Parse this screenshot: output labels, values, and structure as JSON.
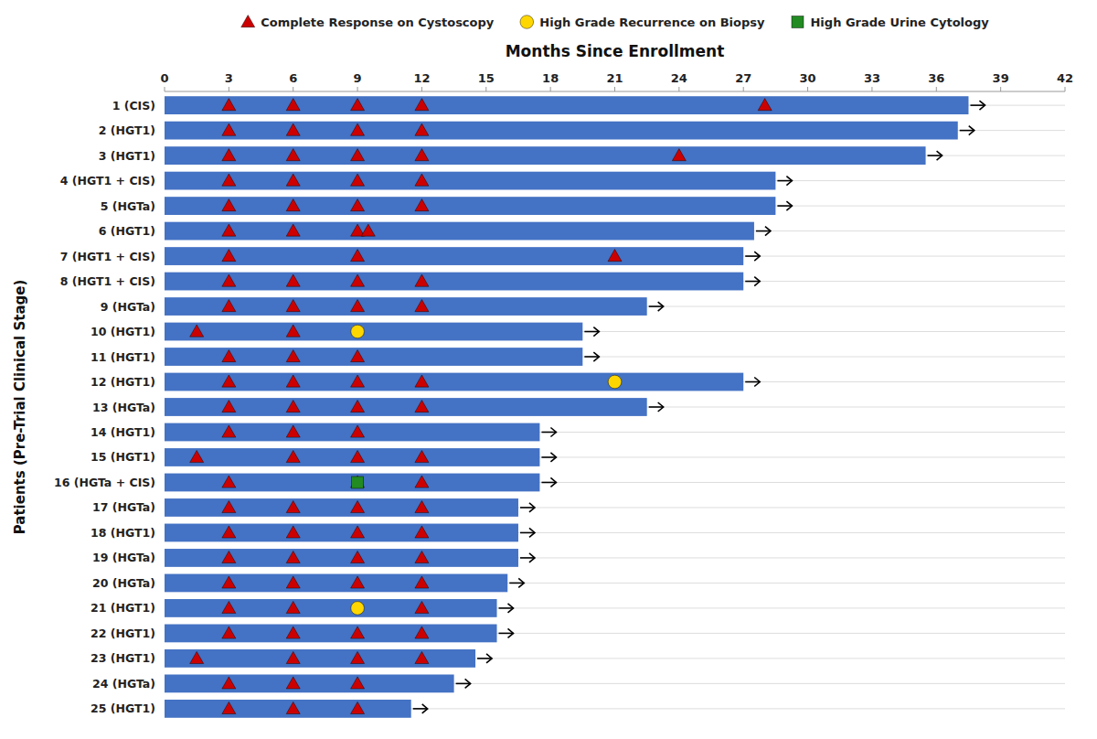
{
  "chart_data": {
    "type": "swimmer",
    "orientation": "horizontal",
    "xlabel": "Months Since Enrollment",
    "ylabel": "Patients (Pre-Trial Clinical Stage)",
    "categories": [
      "1 (CIS)",
      "2 (HGT1)",
      "3 (HGT1)",
      "4 (HGT1 + CIS)",
      "5 (HGTa)",
      "6 (HGT1)",
      "7 (HGT1 + CIS)",
      "8 (HGT1 + CIS)",
      "9 (HGTa)",
      "10 (HGT1)",
      "11 (HGT1)",
      "12 (HGT1)",
      "13 (HGTa)",
      "14 (HGT1)",
      "15 (HGT1)",
      "16 (HGTa + CIS)",
      "17 (HGTa)",
      "18 (HGT1)",
      "19 (HGTa)",
      "20 (HGTa)",
      "21 (HGT1)",
      "22 (HGT1)",
      "23 (HGT1)",
      "24 (HGTa)",
      "25 (HGT1)"
    ],
    "values": [
      37.5,
      37.0,
      35.5,
      28.5,
      28.5,
      27.5,
      27.0,
      27.0,
      22.5,
      19.5,
      19.5,
      27.0,
      22.5,
      17.5,
      17.5,
      17.5,
      16.5,
      16.5,
      16.5,
      16.0,
      15.5,
      15.5,
      14.5,
      13.5,
      11.5
    ],
    "ongoing": [
      true,
      true,
      true,
      true,
      true,
      true,
      true,
      true,
      true,
      true,
      true,
      true,
      true,
      true,
      true,
      true,
      true,
      true,
      true,
      true,
      true,
      true,
      true,
      true,
      true
    ],
    "color": "#4472C4",
    "series": [
      {
        "name": "Complete Response on Cystoscopy",
        "color": "#CC0000",
        "marker": "triangle",
        "values": [
          [
            3,
            6,
            9,
            12,
            28
          ],
          [
            3,
            6,
            9,
            12
          ],
          [
            3,
            6,
            9,
            12,
            24
          ],
          [
            3,
            6,
            9,
            12
          ],
          [
            3,
            6,
            9,
            12
          ],
          [
            3,
            6,
            9,
            9.5
          ],
          [
            3,
            9,
            21
          ],
          [
            3,
            6,
            9,
            12
          ],
          [
            3,
            6,
            9,
            12
          ],
          [
            1.5,
            6
          ],
          [
            3,
            6,
            9
          ],
          [
            3,
            6,
            9,
            12
          ],
          [
            3,
            6,
            9,
            12
          ],
          [
            3,
            6,
            9
          ],
          [
            1.5,
            6,
            9,
            12
          ],
          [
            3,
            9,
            12
          ],
          [
            3,
            6,
            9,
            12
          ],
          [
            3,
            6,
            9,
            12
          ],
          [
            3,
            6,
            9,
            12
          ],
          [
            3,
            6,
            9,
            12
          ],
          [
            3,
            6,
            12
          ],
          [
            3,
            6,
            9,
            12
          ],
          [
            1.5,
            6,
            9,
            12
          ],
          [
            3,
            6,
            9
          ],
          [
            3,
            6,
            9
          ]
        ]
      },
      {
        "name": "High Grade Recurrence on Biopsy",
        "color": "#FFD700",
        "marker": "circle",
        "values": [
          [],
          [],
          [],
          [],
          [],
          [],
          [],
          [],
          [],
          [
            9
          ],
          [],
          [
            21
          ],
          [],
          [],
          [],
          [],
          [],
          [],
          [],
          [],
          [
            9
          ],
          [],
          [],
          [],
          []
        ]
      },
      {
        "name": "High Grade Urine Cytology",
        "color": "#228B22",
        "marker": "square",
        "values": [
          [],
          [],
          [],
          [],
          [],
          [],
          [],
          [],
          [],
          [],
          [],
          [],
          [],
          [],
          [],
          [
            9
          ],
          [],
          [],
          [],
          [],
          [],
          [],
          [],
          [],
          []
        ]
      }
    ],
    "xlim": [
      0,
      42
    ],
    "xticks": [
      0,
      3,
      6,
      9,
      12,
      15,
      18,
      21,
      24,
      27,
      30,
      33,
      36,
      39,
      42
    ],
    "grid": true,
    "legend": "top"
  }
}
